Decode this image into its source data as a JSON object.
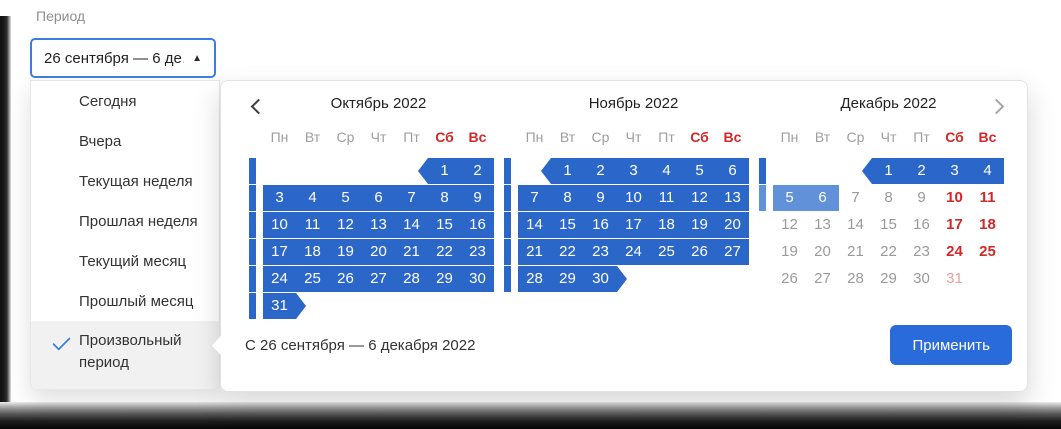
{
  "field": {
    "label": "Период",
    "value": "26 сентября — 6 де…"
  },
  "icons": {
    "select_caret": "caret-up",
    "selected_item": "checkmark",
    "prev": "chevron-left",
    "next": "chevron-right"
  },
  "dropdown": {
    "items": [
      {
        "label": "Сегодня",
        "selected": false
      },
      {
        "label": "Вчера",
        "selected": false
      },
      {
        "label": "Текущая неделя",
        "selected": false
      },
      {
        "label": "Прошлая неделя",
        "selected": false
      },
      {
        "label": "Текущий месяц",
        "selected": false
      },
      {
        "label": "Прошлый месяц",
        "selected": false
      },
      {
        "label": "Произвольный период",
        "selected": true
      }
    ]
  },
  "calendar": {
    "day_headers": [
      {
        "label": "Пн",
        "weekend": false
      },
      {
        "label": "Вт",
        "weekend": false
      },
      {
        "label": "Ср",
        "weekend": false
      },
      {
        "label": "Чт",
        "weekend": false
      },
      {
        "label": "Пт",
        "weekend": false
      },
      {
        "label": "Сб",
        "weekend": true
      },
      {
        "label": "Вс",
        "weekend": true
      }
    ],
    "months": [
      {
        "title": "Октябрь 2022",
        "weeks": [
          {
            "bar": "in",
            "start": true,
            "days": [
              null,
              null,
              null,
              null,
              null,
              [
                1,
                "in"
              ],
              [
                2,
                "in"
              ]
            ]
          },
          {
            "bar": "in",
            "days": [
              [
                3,
                "in"
              ],
              [
                4,
                "in"
              ],
              [
                5,
                "in"
              ],
              [
                6,
                "in"
              ],
              [
                7,
                "in"
              ],
              [
                8,
                "in"
              ],
              [
                9,
                "in"
              ]
            ]
          },
          {
            "bar": "in",
            "days": [
              [
                10,
                "in"
              ],
              [
                11,
                "in"
              ],
              [
                12,
                "in"
              ],
              [
                13,
                "in"
              ],
              [
                14,
                "in"
              ],
              [
                15,
                "in"
              ],
              [
                16,
                "in"
              ]
            ]
          },
          {
            "bar": "in",
            "days": [
              [
                17,
                "in"
              ],
              [
                18,
                "in"
              ],
              [
                19,
                "in"
              ],
              [
                20,
                "in"
              ],
              [
                21,
                "in"
              ],
              [
                22,
                "in"
              ],
              [
                23,
                "in"
              ]
            ]
          },
          {
            "bar": "in",
            "days": [
              [
                24,
                "in"
              ],
              [
                25,
                "in"
              ],
              [
                26,
                "in"
              ],
              [
                27,
                "in"
              ],
              [
                28,
                "in"
              ],
              [
                29,
                "in"
              ],
              [
                30,
                "in"
              ]
            ]
          },
          {
            "bar": "in",
            "end": true,
            "days": [
              [
                31,
                "in"
              ],
              null,
              null,
              null,
              null,
              null,
              null
            ]
          }
        ]
      },
      {
        "title": "Ноябрь 2022",
        "weeks": [
          {
            "bar": "in",
            "start": true,
            "days": [
              null,
              [
                1,
                "in"
              ],
              [
                2,
                "in"
              ],
              [
                3,
                "in"
              ],
              [
                4,
                "in"
              ],
              [
                5,
                "in"
              ],
              [
                6,
                "in"
              ]
            ]
          },
          {
            "bar": "in",
            "days": [
              [
                7,
                "in"
              ],
              [
                8,
                "in"
              ],
              [
                9,
                "in"
              ],
              [
                10,
                "in"
              ],
              [
                11,
                "in"
              ],
              [
                12,
                "in"
              ],
              [
                13,
                "in"
              ]
            ]
          },
          {
            "bar": "in",
            "days": [
              [
                14,
                "in"
              ],
              [
                15,
                "in"
              ],
              [
                16,
                "in"
              ],
              [
                17,
                "in"
              ],
              [
                18,
                "in"
              ],
              [
                19,
                "in"
              ],
              [
                20,
                "in"
              ]
            ]
          },
          {
            "bar": "in",
            "days": [
              [
                21,
                "in"
              ],
              [
                22,
                "in"
              ],
              [
                23,
                "in"
              ],
              [
                24,
                "in"
              ],
              [
                25,
                "in"
              ],
              [
                26,
                "in"
              ],
              [
                27,
                "in"
              ]
            ]
          },
          {
            "bar": "in",
            "end": true,
            "days": [
              [
                28,
                "in"
              ],
              [
                29,
                "in"
              ],
              [
                30,
                "in"
              ],
              null,
              null,
              null,
              null
            ]
          }
        ]
      },
      {
        "title": "Декабрь 2022",
        "weeks": [
          {
            "bar": "in",
            "start": true,
            "days": [
              null,
              null,
              null,
              [
                1,
                "in"
              ],
              [
                2,
                "in"
              ],
              [
                3,
                "in"
              ],
              [
                4,
                "in"
              ]
            ]
          },
          {
            "bar": "in2",
            "days": [
              [
                5,
                "in2"
              ],
              [
                6,
                "in2"
              ],
              [
                7,
                "mut"
              ],
              [
                8,
                "mut"
              ],
              [
                9,
                "mut"
              ],
              [
                10,
                "wk"
              ],
              [
                11,
                "wk"
              ]
            ]
          },
          {
            "days": [
              [
                12,
                "mut"
              ],
              [
                13,
                "mut"
              ],
              [
                14,
                "mut"
              ],
              [
                15,
                "mut"
              ],
              [
                16,
                "mut"
              ],
              [
                17,
                "wk"
              ],
              [
                18,
                "wk"
              ]
            ]
          },
          {
            "days": [
              [
                19,
                "mut"
              ],
              [
                20,
                "mut"
              ],
              [
                21,
                "mut"
              ],
              [
                22,
                "mut"
              ],
              [
                23,
                "mut"
              ],
              [
                24,
                "wk"
              ],
              [
                25,
                "wk"
              ]
            ]
          },
          {
            "days": [
              [
                26,
                "mut"
              ],
              [
                27,
                "mut"
              ],
              [
                28,
                "mut"
              ],
              [
                29,
                "mut"
              ],
              [
                30,
                "mut"
              ],
              [
                31,
                "wk2"
              ],
              null
            ]
          }
        ]
      }
    ],
    "footer": {
      "range_text": "С 26 сентября — 6 декабря 2022",
      "apply_label": "Применить"
    }
  },
  "colors": {
    "accent": "#2b66c9",
    "accent_light": "#6191d9",
    "red": "#d32828",
    "red_pale": "#e8a0a0",
    "muted": "#9a9a9a",
    "border_blue": "#3b7de0",
    "button_blue": "#2a6bdb",
    "selected_bg": "#f1f1f2"
  }
}
